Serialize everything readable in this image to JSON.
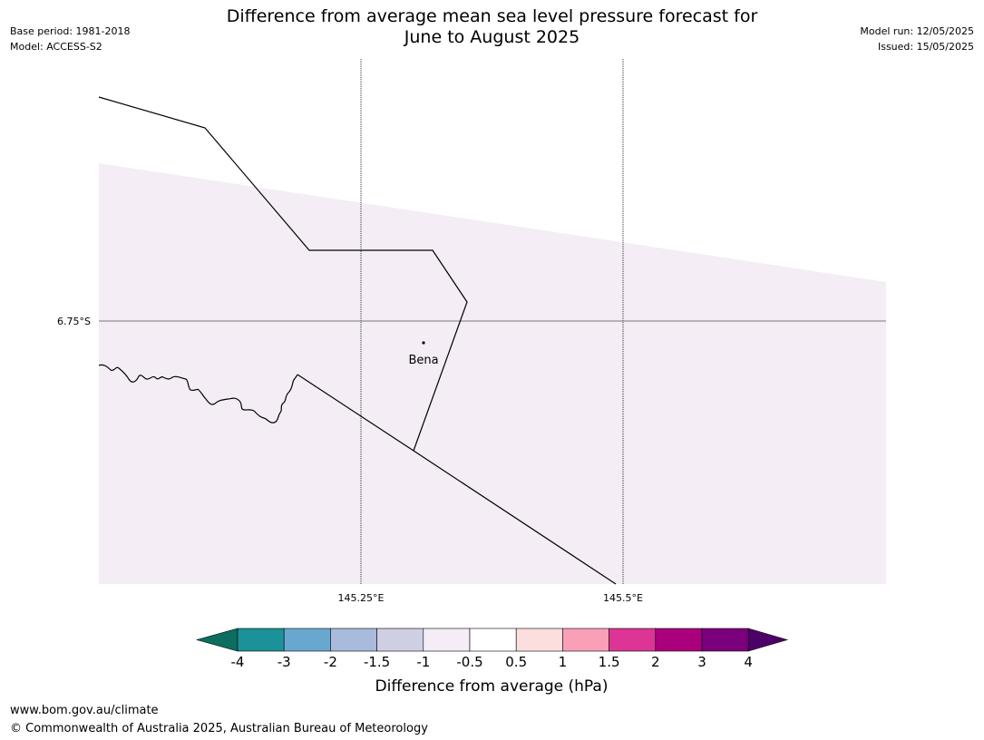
{
  "header": {
    "title_line1": "Difference from average mean sea level pressure forecast for",
    "title_line2": "June to August 2025",
    "base_period": "Base period: 1981-2018",
    "model": "Model: ACCESS-S2",
    "model_run": "Model run: 12/05/2025",
    "issued": "Issued: 15/05/2025"
  },
  "map": {
    "lat_labels": [
      "6.75°S"
    ],
    "lon_labels": [
      "145.25°E",
      "145.5°E"
    ],
    "place": {
      "name": "Bena"
    },
    "anomaly_fill_color": "#f4edf5"
  },
  "colorbar": {
    "label": "Difference from average (hPa)",
    "ticks": [
      "-4",
      "-3",
      "-2",
      "-1.5",
      "-1",
      "-0.5",
      "0.5",
      "1",
      "1.5",
      "2",
      "3",
      "4"
    ],
    "colors": [
      "#0b6e5f",
      "#1b9199",
      "#68a8d0",
      "#a8bbdc",
      "#cfcfe4",
      "#f4edf5",
      "#ffffff",
      "#fddede",
      "#f9a0b8",
      "#dc3596",
      "#ab007e",
      "#7a007c",
      "#4c0068"
    ]
  },
  "footer": {
    "url": "www.bom.gov.au/climate",
    "copyright": "© Commonwealth of Australia 2025, Australian Bureau of Meteorology"
  }
}
